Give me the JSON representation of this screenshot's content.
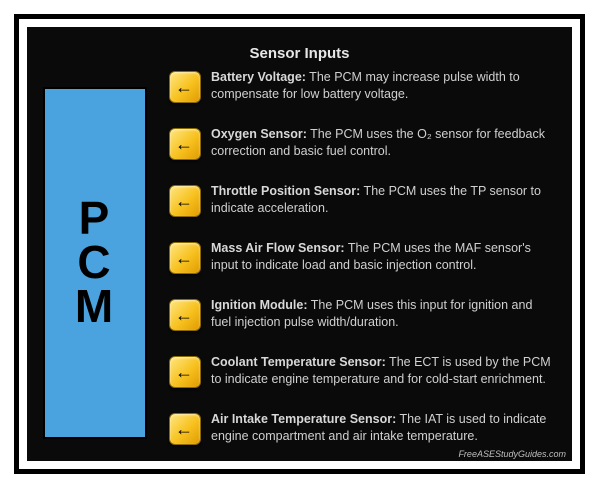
{
  "type": "infographic",
  "background_color": "#ffffff",
  "frame_border_color": "#000000",
  "inner_background": "#0a0a0a",
  "pcm": {
    "letters": [
      "P",
      "C",
      "M"
    ],
    "bg_color": "#4aa3df",
    "border_color": "#000000",
    "font_size": 46,
    "font_weight": 700
  },
  "header": {
    "title": "Sensor Inputs",
    "color": "#e7e7e7",
    "font_size": 15
  },
  "arrow_badge": {
    "bg_gradient": [
      "#ffe680",
      "#f7c11f",
      "#e09a00"
    ],
    "border_color": "#8a6a00",
    "glyph": "←",
    "glyph_color": "#000000"
  },
  "item_text_color": "#d0d0d0",
  "item_label_color": "#d8d8d8",
  "item_font_size": 12.5,
  "items": [
    {
      "label": "Battery Voltage:",
      "desc": " The PCM may increase pulse width to compensate for low battery voltage."
    },
    {
      "label": "Oxygen Sensor:",
      "desc": " The PCM uses the O₂ sensor for feedback correction and basic fuel control."
    },
    {
      "label": "Throttle Position Sensor:",
      "desc": " The PCM uses the TP sensor to indicate acceleration."
    },
    {
      "label": "Mass Air Flow Sensor:",
      "desc": " The PCM uses the MAF sensor's input to indicate load and basic injection control."
    },
    {
      "label": "Ignition Module:",
      "desc": " The PCM uses this input for ignition and fuel injection pulse width/duration."
    },
    {
      "label": "Coolant Temperature Sensor:",
      "desc": " The ECT is used by the PCM to indicate engine temperature and for cold-start enrichment."
    },
    {
      "label": "Air Intake Temperature Sensor:",
      "desc": " The IAT is used to indicate engine compartment and air intake temperature."
    }
  ],
  "watermark": "FreeASEStudyGuides.com"
}
